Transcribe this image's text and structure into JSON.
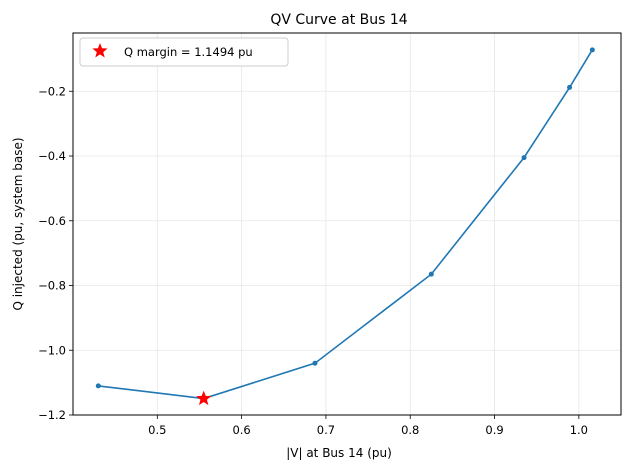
{
  "chart_data": {
    "type": "line",
    "title": "QV Curve at Bus 14",
    "xlabel": "|V| at Bus 14 (pu)",
    "ylabel": "Q injected (pu, system base)",
    "xlim": [
      0.4,
      1.05
    ],
    "ylim": [
      -1.2,
      -0.02
    ],
    "xticks": [
      0.5,
      0.6,
      0.7,
      0.8,
      0.9,
      1.0
    ],
    "xtick_labels": [
      "0.5",
      "0.6",
      "0.7",
      "0.8",
      "0.9",
      "1.0"
    ],
    "yticks": [
      -1.2,
      -1.0,
      -0.8,
      -0.6,
      -0.4,
      -0.2
    ],
    "ytick_labels": [
      "−1.2",
      "−1.0",
      "−0.8",
      "−0.6",
      "−0.4",
      "−0.2"
    ],
    "grid": true,
    "legend_position": "top-left",
    "series": [
      {
        "color": "#1f77b4",
        "marker": "dot",
        "x": [
          0.43,
          0.555,
          0.687,
          0.825,
          0.935,
          0.989,
          1.016
        ],
        "y": [
          -1.11,
          -1.149,
          -1.04,
          -0.765,
          -0.405,
          -0.188,
          -0.072
        ]
      }
    ],
    "highlight": {
      "name": "Q margin = 1.1494 pu",
      "x": 0.555,
      "y": -1.1494,
      "marker": "star",
      "color": "#ff0000"
    }
  }
}
